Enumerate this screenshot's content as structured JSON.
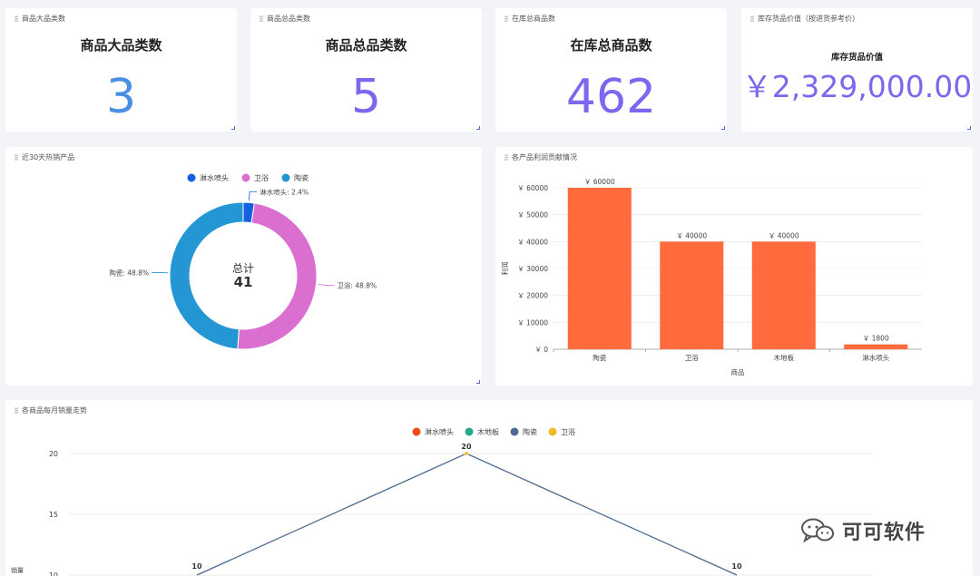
{
  "colors": {
    "blue_value": "#4a90e2",
    "purple_value": "#7b68ee",
    "bar": "#ff6b3d",
    "pie_shower": "#1560e0",
    "pie_bath": "#db6fd0",
    "pie_ceramic": "#2396d3",
    "line_shower": "#ee4c1c",
    "line_wood": "#26a98a",
    "line_ceramic": "#4d6c8c",
    "line_bath": "#f2b826"
  },
  "kpis": [
    {
      "card_title": "商品大品类数",
      "heading": "商品大品类数",
      "value": "3"
    },
    {
      "card_title": "商品总品类数",
      "heading": "商品总品类数",
      "value": "5"
    },
    {
      "card_title": "在库总商品数",
      "heading": "在库总商品数",
      "value": "462"
    },
    {
      "card_title": "库存货品价值（按进货参考价）",
      "heading": "库存货品价值",
      "value": "￥2,329,000.00"
    }
  ],
  "pie_card": {
    "title": "近30天热销产品"
  },
  "profit_card": {
    "title": "各产品利润贡献情况"
  },
  "trend_card": {
    "title": "各商品每月销量走势"
  },
  "watermark": {
    "text": "可可软件",
    "icon": "wechat-icon"
  },
  "chart_data": [
    {
      "type": "pie",
      "variant": "donut",
      "legend": [
        "淋水喷头",
        "卫浴",
        "陶瓷"
      ],
      "slices": [
        {
          "name": "淋水喷头",
          "value": 1,
          "label": "淋水喷头: 2.4%"
        },
        {
          "name": "卫浴",
          "value": 20,
          "label": "卫浴: 48.8%"
        },
        {
          "name": "陶瓷",
          "value": 20,
          "label": "陶瓷: 48.8%"
        }
      ],
      "center_label": "总计",
      "center_value": "41"
    },
    {
      "type": "bar",
      "categories": [
        "陶瓷",
        "卫浴",
        "木地板",
        "淋水喷头"
      ],
      "values": [
        60000,
        40000,
        40000,
        1800
      ],
      "data_labels": [
        "￥ 60000",
        "￥ 40000",
        "￥ 40000",
        "￥ 1800"
      ],
      "ylim": [
        0,
        60000
      ],
      "yticks": [
        0,
        10000,
        20000,
        30000,
        40000,
        50000,
        60000
      ],
      "ytick_labels": [
        "￥ 0",
        "￥ 10000",
        "￥ 20000",
        "￥ 30000",
        "￥ 40000",
        "￥ 50000",
        "￥ 60000"
      ],
      "xlabel": "商品",
      "ylabel": "利润"
    },
    {
      "type": "line",
      "legend": [
        "淋水喷头",
        "木地板",
        "陶瓷",
        "卫浴"
      ],
      "yticks": [
        10,
        15,
        20
      ],
      "ytick_labels": [
        "10",
        "15",
        "20"
      ],
      "ylabel": "销量",
      "point_labels": [
        {
          "series": "陶瓷",
          "x": 0,
          "y": 10,
          "label": "10"
        },
        {
          "series": "陶瓷",
          "x": 1,
          "y": 20,
          "label": "20"
        },
        {
          "series": "陶瓷",
          "x": 2,
          "y": 10,
          "label": "10"
        }
      ]
    }
  ]
}
